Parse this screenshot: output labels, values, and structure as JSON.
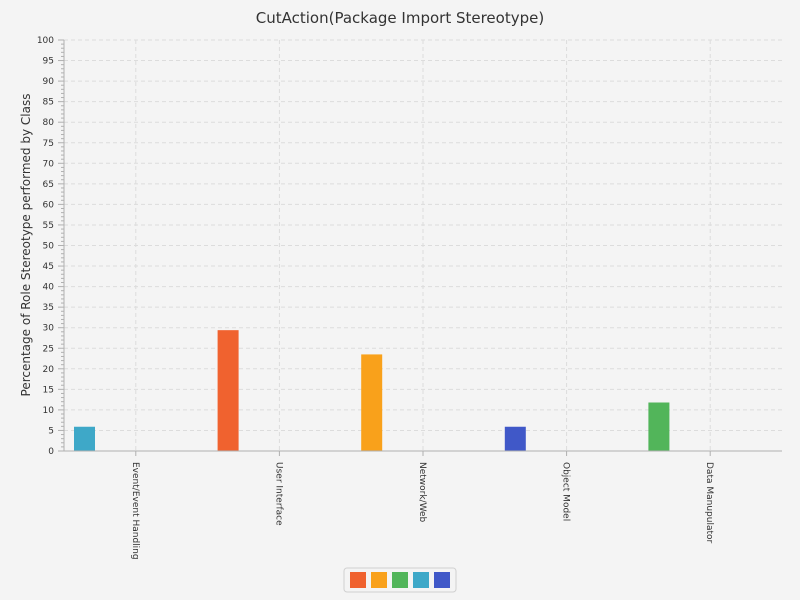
{
  "chart_data": {
    "type": "bar",
    "title": "CutAction(Package Import Stereotype)",
    "xlabel": "",
    "ylabel": "Percentage of Role Stereotype performed by Class",
    "ylim": [
      0,
      100
    ],
    "y_tick_step": 5,
    "grid": true,
    "legend_position": "bottom-center",
    "categories": [
      "Event/Event Handling",
      "User Interface",
      "Network/Web",
      "Object Model",
      "Data Manupulator"
    ],
    "series": [
      {
        "color": "#f0622f",
        "values": [
          0,
          29.4,
          0,
          0,
          0
        ]
      },
      {
        "color": "#f9a11b",
        "values": [
          0,
          0,
          23.5,
          0,
          0
        ]
      },
      {
        "color": "#52b55a",
        "values": [
          0,
          0,
          0,
          0,
          11.8
        ]
      },
      {
        "color": "#3ea8c8",
        "values": [
          5.9,
          0,
          0,
          0,
          0
        ]
      },
      {
        "color": "#4058c8",
        "values": [
          0,
          0,
          0,
          5.9,
          0
        ]
      }
    ]
  }
}
